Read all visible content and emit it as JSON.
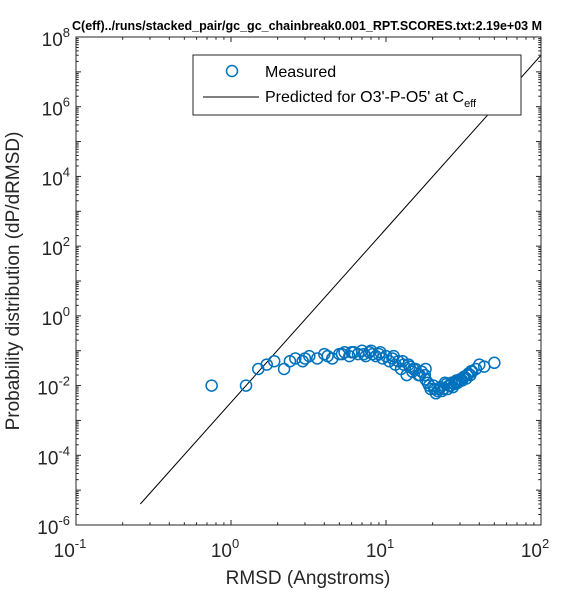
{
  "chart_data": {
    "type": "scatter",
    "title": "C(eff)../runs/stacked_pair/gc_gc_chainbreak0.001_RPT.SCORES.txt:2.19e+03 M",
    "xlabel": "RMSD (Angstroms)",
    "ylabel": "Probability distribution (dP/dRMSD)",
    "xscale": "log",
    "yscale": "log",
    "xlim": [
      0.1,
      100
    ],
    "ylim": [
      1e-06,
      100000000.0
    ],
    "x_ticks": [
      {
        "value": 0.1,
        "base": "10",
        "exp": "-1"
      },
      {
        "value": 1,
        "base": "10",
        "exp": "0"
      },
      {
        "value": 10,
        "base": "10",
        "exp": "1"
      },
      {
        "value": 100,
        "base": "10",
        "exp": "2"
      }
    ],
    "y_ticks": [
      {
        "value": 1e-06,
        "base": "10",
        "exp": "-6"
      },
      {
        "value": 0.0001,
        "base": "10",
        "exp": "-4"
      },
      {
        "value": 0.01,
        "base": "10",
        "exp": "-2"
      },
      {
        "value": 1,
        "base": "10",
        "exp": "0"
      },
      {
        "value": 100.0,
        "base": "10",
        "exp": "2"
      },
      {
        "value": 10000.0,
        "base": "10",
        "exp": "4"
      },
      {
        "value": 1000000.0,
        "base": "10",
        "exp": "6"
      },
      {
        "value": 100000000.0,
        "base": "10",
        "exp": "8"
      }
    ],
    "grid": false,
    "legend_position": "top-right",
    "colors": {
      "measured": "#0072BD",
      "predicted": "#000000",
      "axes": "#262626"
    },
    "series": [
      {
        "name": "Measured",
        "type": "scatter",
        "marker": "circle-open",
        "x": [
          0.75,
          1.25,
          1.5,
          1.7,
          1.9,
          2.2,
          2.4,
          2.6,
          2.9,
          3.2,
          3.6,
          4.0,
          4.5,
          5.0,
          5.4,
          5.8,
          6.2,
          6.6,
          7.0,
          7.4,
          7.8,
          8.2,
          8.6,
          9.0,
          9.5,
          10.0,
          10.5,
          11.0,
          11.5,
          12.0,
          12.5,
          13.0,
          13.6,
          14.2,
          14.8,
          15.5,
          16.2,
          17.0,
          17.8,
          18.6,
          19.4,
          20.2,
          21.0,
          22.0,
          23.0,
          24.0,
          25.0,
          26.0,
          27.0,
          28.0,
          29.0,
          30.0,
          31.0,
          32.0,
          33.0,
          34.0,
          35.0,
          36.0,
          38.0,
          40.0,
          43.0,
          50.0,
          3.0,
          4.2,
          5.2,
          6.0,
          7.2,
          8.0,
          9.2,
          11.2,
          12.8,
          14.0,
          15.0,
          16.5,
          18.0,
          19.0,
          20.5,
          21.5,
          22.5,
          23.5,
          24.5,
          25.5,
          26.5,
          27.5,
          28.5,
          29.5,
          31.5,
          33.5,
          35.5,
          18.0
        ],
        "y": [
          0.01,
          0.01,
          0.03,
          0.04,
          0.05,
          0.03,
          0.05,
          0.06,
          0.05,
          0.07,
          0.06,
          0.08,
          0.06,
          0.08,
          0.09,
          0.07,
          0.09,
          0.08,
          0.1,
          0.07,
          0.09,
          0.08,
          0.07,
          0.08,
          0.06,
          0.07,
          0.05,
          0.06,
          0.04,
          0.05,
          0.03,
          0.04,
          0.02,
          0.035,
          0.025,
          0.03,
          0.02,
          0.025,
          0.02,
          0.012,
          0.008,
          0.01,
          0.006,
          0.008,
          0.007,
          0.012,
          0.008,
          0.01,
          0.009,
          0.013,
          0.012,
          0.015,
          0.014,
          0.018,
          0.016,
          0.022,
          0.02,
          0.025,
          0.03,
          0.04,
          0.035,
          0.045,
          0.06,
          0.07,
          0.08,
          0.09,
          0.08,
          0.1,
          0.09,
          0.07,
          0.05,
          0.04,
          0.03,
          0.02,
          0.015,
          0.01,
          0.008,
          0.007,
          0.009,
          0.008,
          0.011,
          0.01,
          0.012,
          0.011,
          0.014,
          0.013,
          0.017,
          0.02,
          0.026,
          0.03
        ]
      },
      {
        "name": "Predicted for O3'-P-O5' at C",
        "name_subscript": "eff",
        "type": "line",
        "x": [
          0.26,
          100
        ],
        "y": [
          4e-06,
          30000000.0
        ]
      }
    ]
  }
}
